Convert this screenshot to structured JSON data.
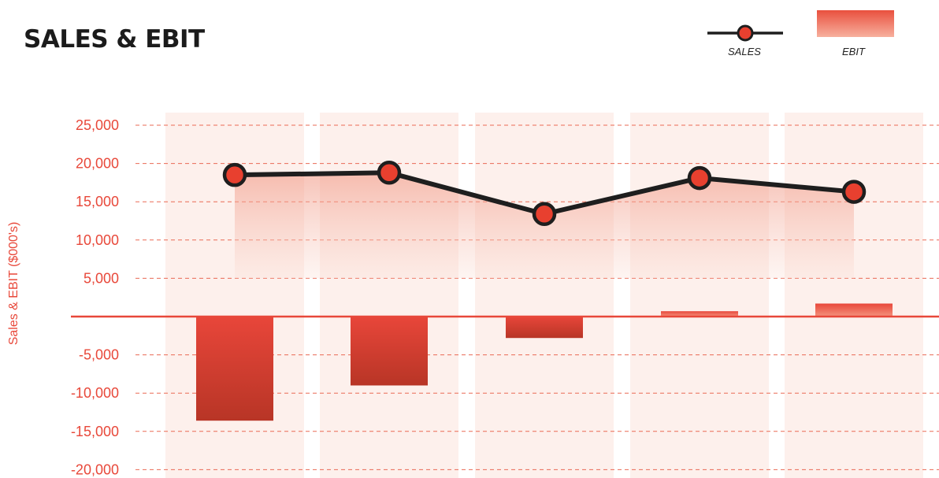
{
  "title": "SALES & EBIT",
  "legend": [
    {
      "label": "SALES",
      "icon": "line-marker-icon"
    },
    {
      "label": "EBIT",
      "icon": "bar-swatch-icon"
    }
  ],
  "colors": {
    "accent": "#e8483a",
    "bar_top": "#e8463a",
    "bar_bottom": "#b83526",
    "line": "#1e1e1e",
    "marker": "#e8402f",
    "band": "#fdf0ec",
    "grid": "#ea6a55"
  },
  "chart_data": {
    "type": "bar+line",
    "title": "SALES & EBIT",
    "ylabel": "Sales & EBIT ($000's)",
    "xlabel": "",
    "ylim": [
      -20000,
      25000
    ],
    "yticks": [
      25000,
      20000,
      15000,
      10000,
      5000,
      -5000,
      -10000,
      -15000,
      -20000
    ],
    "ytick_labels": [
      "25,000",
      "20,000",
      "15,000",
      "10,000",
      "5,000",
      "-5,000",
      "-10,000",
      "-15,000",
      "-20,000"
    ],
    "grid": true,
    "legend_position": "top-right",
    "categories": [
      "",
      "",
      "",
      "",
      ""
    ],
    "series": [
      {
        "name": "SALES",
        "type": "line",
        "values": [
          18500,
          18800,
          13400,
          18100,
          16300
        ]
      },
      {
        "name": "EBIT",
        "type": "bar",
        "values": [
          -13600,
          -9000,
          -2800,
          700,
          1700
        ]
      }
    ]
  }
}
